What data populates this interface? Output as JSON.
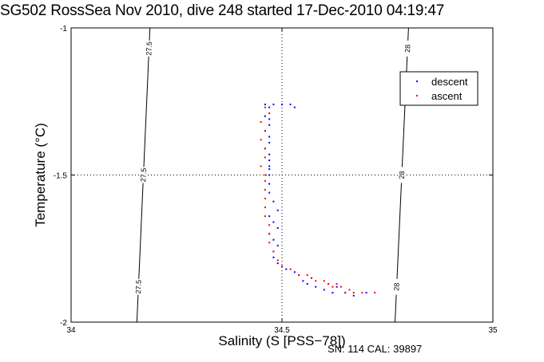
{
  "chart_data": {
    "type": "scatter",
    "title": "SG502 RossSea Nov 2010, dive 248 started 17-Dec-2010 04:19:47",
    "xlabel": "Salinity (S [PSS−78])",
    "ylabel": "Temperature (°C)",
    "xlim": [
      34,
      35
    ],
    "ylim": [
      -2,
      -1
    ],
    "x_ticks": [
      "34",
      "34.5",
      "35"
    ],
    "y_ticks": [
      "-1",
      "-1.5",
      "-2"
    ],
    "grid": "dotted at 34.5 and -1.5",
    "legend_position": "top-right",
    "density_contours": [
      {
        "label": "27.5",
        "x_at_tmin": 34.156,
        "x_at_tmax": 34.187
      },
      {
        "label": "28",
        "x_at_tmin": 34.768,
        "x_at_tmax": 34.8
      }
    ],
    "series": [
      {
        "name": "descent",
        "color": "#0000ff",
        "marker": "dot",
        "points": [
          [
            34.46,
            -1.26
          ],
          [
            34.47,
            -1.27
          ],
          [
            34.48,
            -1.26
          ],
          [
            34.5,
            -1.26
          ],
          [
            34.52,
            -1.26
          ],
          [
            34.53,
            -1.27
          ],
          [
            34.46,
            -1.3
          ],
          [
            34.47,
            -1.31
          ],
          [
            34.47,
            -1.33
          ],
          [
            34.46,
            -1.35
          ],
          [
            34.47,
            -1.37
          ],
          [
            34.47,
            -1.39
          ],
          [
            34.46,
            -1.41
          ],
          [
            34.47,
            -1.43
          ],
          [
            34.47,
            -1.45
          ],
          [
            34.47,
            -1.47
          ],
          [
            34.47,
            -1.48
          ],
          [
            34.47,
            -1.5
          ],
          [
            34.47,
            -1.53
          ],
          [
            34.47,
            -1.56
          ],
          [
            34.48,
            -1.59
          ],
          [
            34.49,
            -1.62
          ],
          [
            34.47,
            -1.64
          ],
          [
            34.48,
            -1.66
          ],
          [
            34.49,
            -1.68
          ],
          [
            34.47,
            -1.7
          ],
          [
            34.48,
            -1.72
          ],
          [
            34.49,
            -1.74
          ],
          [
            34.48,
            -1.76
          ],
          [
            34.48,
            -1.78
          ],
          [
            34.49,
            -1.8
          ],
          [
            34.5,
            -1.81
          ],
          [
            34.51,
            -1.82
          ],
          [
            34.53,
            -1.83
          ],
          [
            34.54,
            -1.84
          ],
          [
            34.55,
            -1.86
          ],
          [
            34.56,
            -1.87
          ],
          [
            34.57,
            -1.85
          ],
          [
            34.58,
            -1.88
          ],
          [
            34.6,
            -1.89
          ],
          [
            34.61,
            -1.87
          ],
          [
            34.62,
            -1.9
          ],
          [
            34.63,
            -1.88
          ],
          [
            34.65,
            -1.9
          ],
          [
            34.67,
            -1.91
          ],
          [
            34.7,
            -1.9
          ]
        ]
      },
      {
        "name": "ascent",
        "color": "#ff0000",
        "marker": "dot",
        "points": [
          [
            34.46,
            -1.27
          ],
          [
            34.47,
            -1.29
          ],
          [
            34.45,
            -1.32
          ],
          [
            34.46,
            -1.35
          ],
          [
            34.45,
            -1.38
          ],
          [
            34.46,
            -1.41
          ],
          [
            34.46,
            -1.44
          ],
          [
            34.45,
            -1.47
          ],
          [
            34.46,
            -1.5
          ],
          [
            34.46,
            -1.52
          ],
          [
            34.46,
            -1.55
          ],
          [
            34.46,
            -1.58
          ],
          [
            34.46,
            -1.61
          ],
          [
            34.46,
            -1.64
          ],
          [
            34.47,
            -1.67
          ],
          [
            34.47,
            -1.7
          ],
          [
            34.47,
            -1.73
          ],
          [
            34.48,
            -1.76
          ],
          [
            34.49,
            -1.79
          ],
          [
            34.5,
            -1.81
          ],
          [
            34.52,
            -1.82
          ],
          [
            34.54,
            -1.84
          ],
          [
            34.56,
            -1.84
          ],
          [
            34.57,
            -1.85
          ],
          [
            34.58,
            -1.86
          ],
          [
            34.6,
            -1.86
          ],
          [
            34.61,
            -1.87
          ],
          [
            34.62,
            -1.88
          ],
          [
            34.63,
            -1.87
          ],
          [
            34.64,
            -1.88
          ],
          [
            34.65,
            -1.9
          ],
          [
            34.66,
            -1.89
          ],
          [
            34.67,
            -1.9
          ],
          [
            34.69,
            -1.9
          ],
          [
            34.72,
            -1.9
          ]
        ]
      }
    ]
  },
  "footer": {
    "serial_label": "SN: 114  CAL: 39897"
  }
}
